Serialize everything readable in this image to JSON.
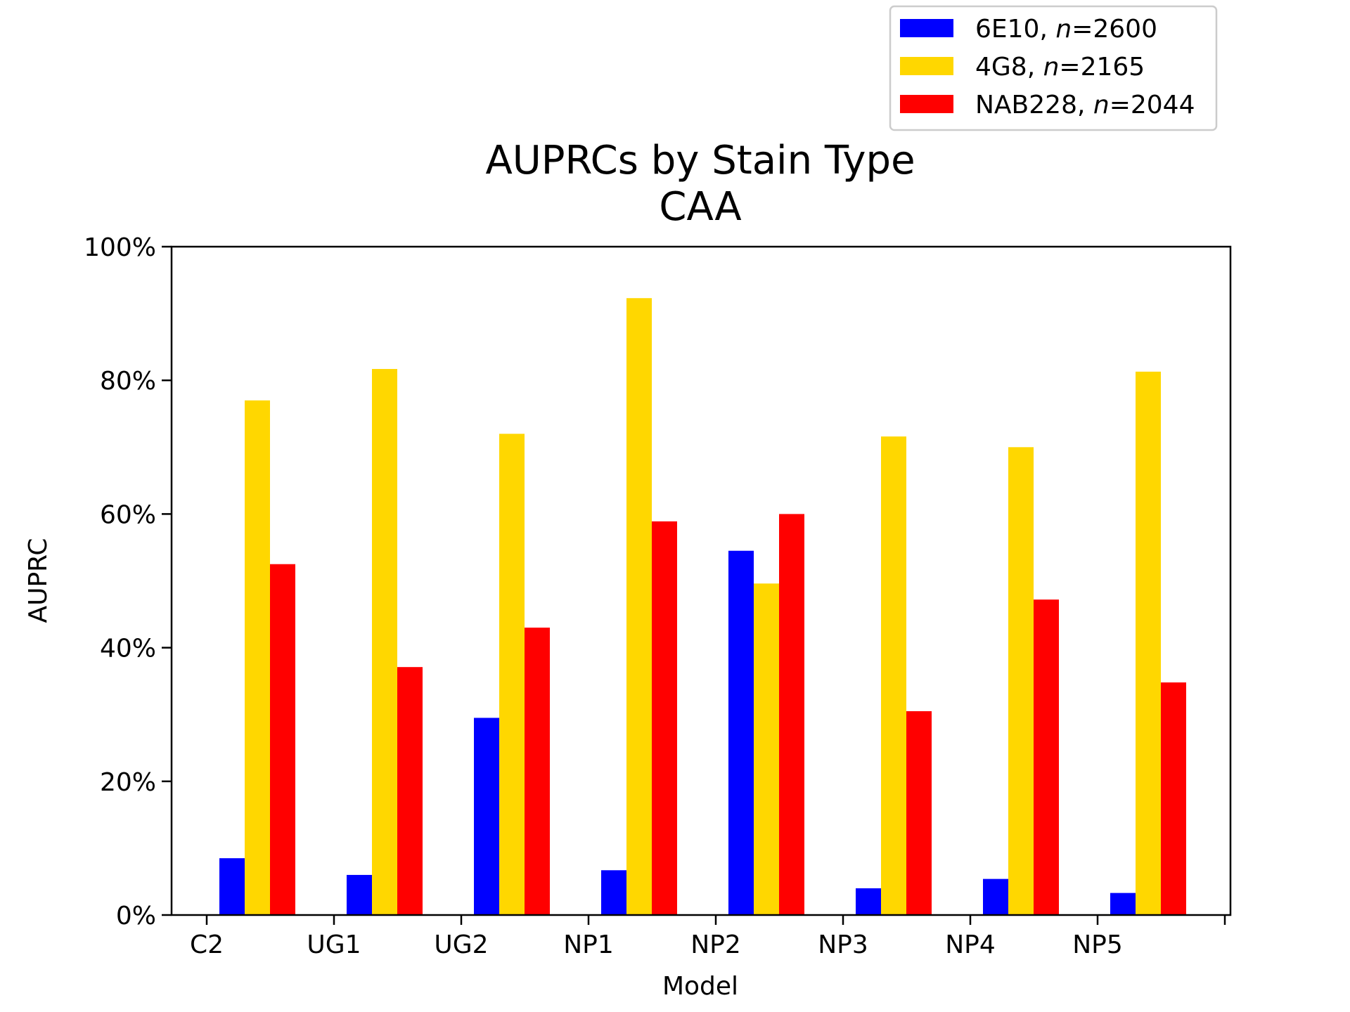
{
  "chart_data": {
    "type": "bar",
    "title": "AUPRCs by Stain Type",
    "subtitle": "CAA",
    "xlabel": "Model",
    "ylabel": "AUPRC",
    "categories": [
      "C2",
      "UG1",
      "UG2",
      "NP1",
      "NP2",
      "NP3",
      "NP4",
      "NP5"
    ],
    "ylim": [
      0,
      100
    ],
    "yticks": [
      "0%",
      "20%",
      "40%",
      "60%",
      "80%",
      "100%"
    ],
    "grid": false,
    "legend_position": "top-right, above plot",
    "series": [
      {
        "name": "6E10",
        "n": "2600",
        "color": "#0000ff",
        "values": [
          8.5,
          6.0,
          29.5,
          6.7,
          54.5,
          4.0,
          5.4,
          3.3
        ]
      },
      {
        "name": "4G8",
        "n": "2165",
        "color": "#ffd700",
        "values": [
          77.0,
          81.7,
          72.0,
          92.3,
          49.6,
          71.6,
          70.0,
          81.3
        ]
      },
      {
        "name": "NAB228",
        "n": "2044",
        "color": "#ff0000",
        "values": [
          52.5,
          37.1,
          43.0,
          58.9,
          60.0,
          30.5,
          47.2,
          34.8
        ]
      }
    ]
  }
}
